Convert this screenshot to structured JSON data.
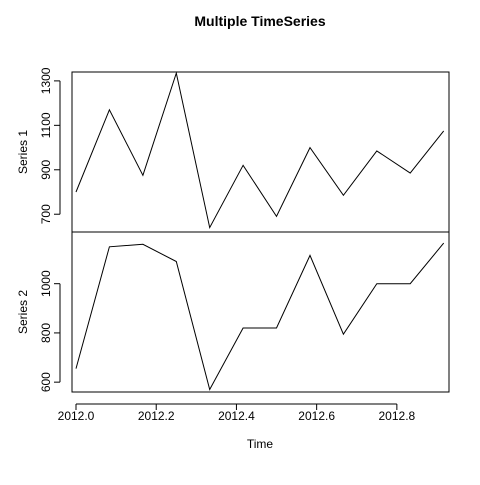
{
  "chart_data": {
    "type": "line",
    "title": "Multiple TimeSeries",
    "xlabel": "Time",
    "x": [
      2012.0,
      2012.0833,
      2012.1667,
      2012.25,
      2012.3333,
      2012.4167,
      2012.5,
      2012.5833,
      2012.6667,
      2012.75,
      2012.8333,
      2012.9167
    ],
    "xlim": [
      2011.99,
      2012.93
    ],
    "x_ticks": [
      2012.0,
      2012.2,
      2012.4,
      2012.6,
      2012.8
    ],
    "x_tick_labels": [
      "2012.0",
      "2012.2",
      "2012.4",
      "2012.6",
      "2012.8"
    ],
    "grid": false,
    "panels": [
      {
        "ylabel": "Series 1",
        "ylim": [
          620,
          1340
        ],
        "y_ticks": [
          700,
          900,
          1100,
          1300
        ],
        "y_tick_labels": [
          "700",
          "900",
          "1100",
          "1300"
        ],
        "values": [
          800,
          1170,
          875,
          1335,
          640,
          920,
          690,
          1000,
          785,
          985,
          885,
          1075
        ]
      },
      {
        "ylabel": "Series 2",
        "ylim": [
          560,
          1210
        ],
        "y_ticks": [
          600,
          800,
          1000
        ],
        "y_tick_labels": [
          "600",
          "800",
          "1000"
        ],
        "values": [
          655,
          1150,
          1160,
          1090,
          570,
          820,
          820,
          1115,
          795,
          1000,
          1000,
          1165
        ]
      }
    ]
  }
}
